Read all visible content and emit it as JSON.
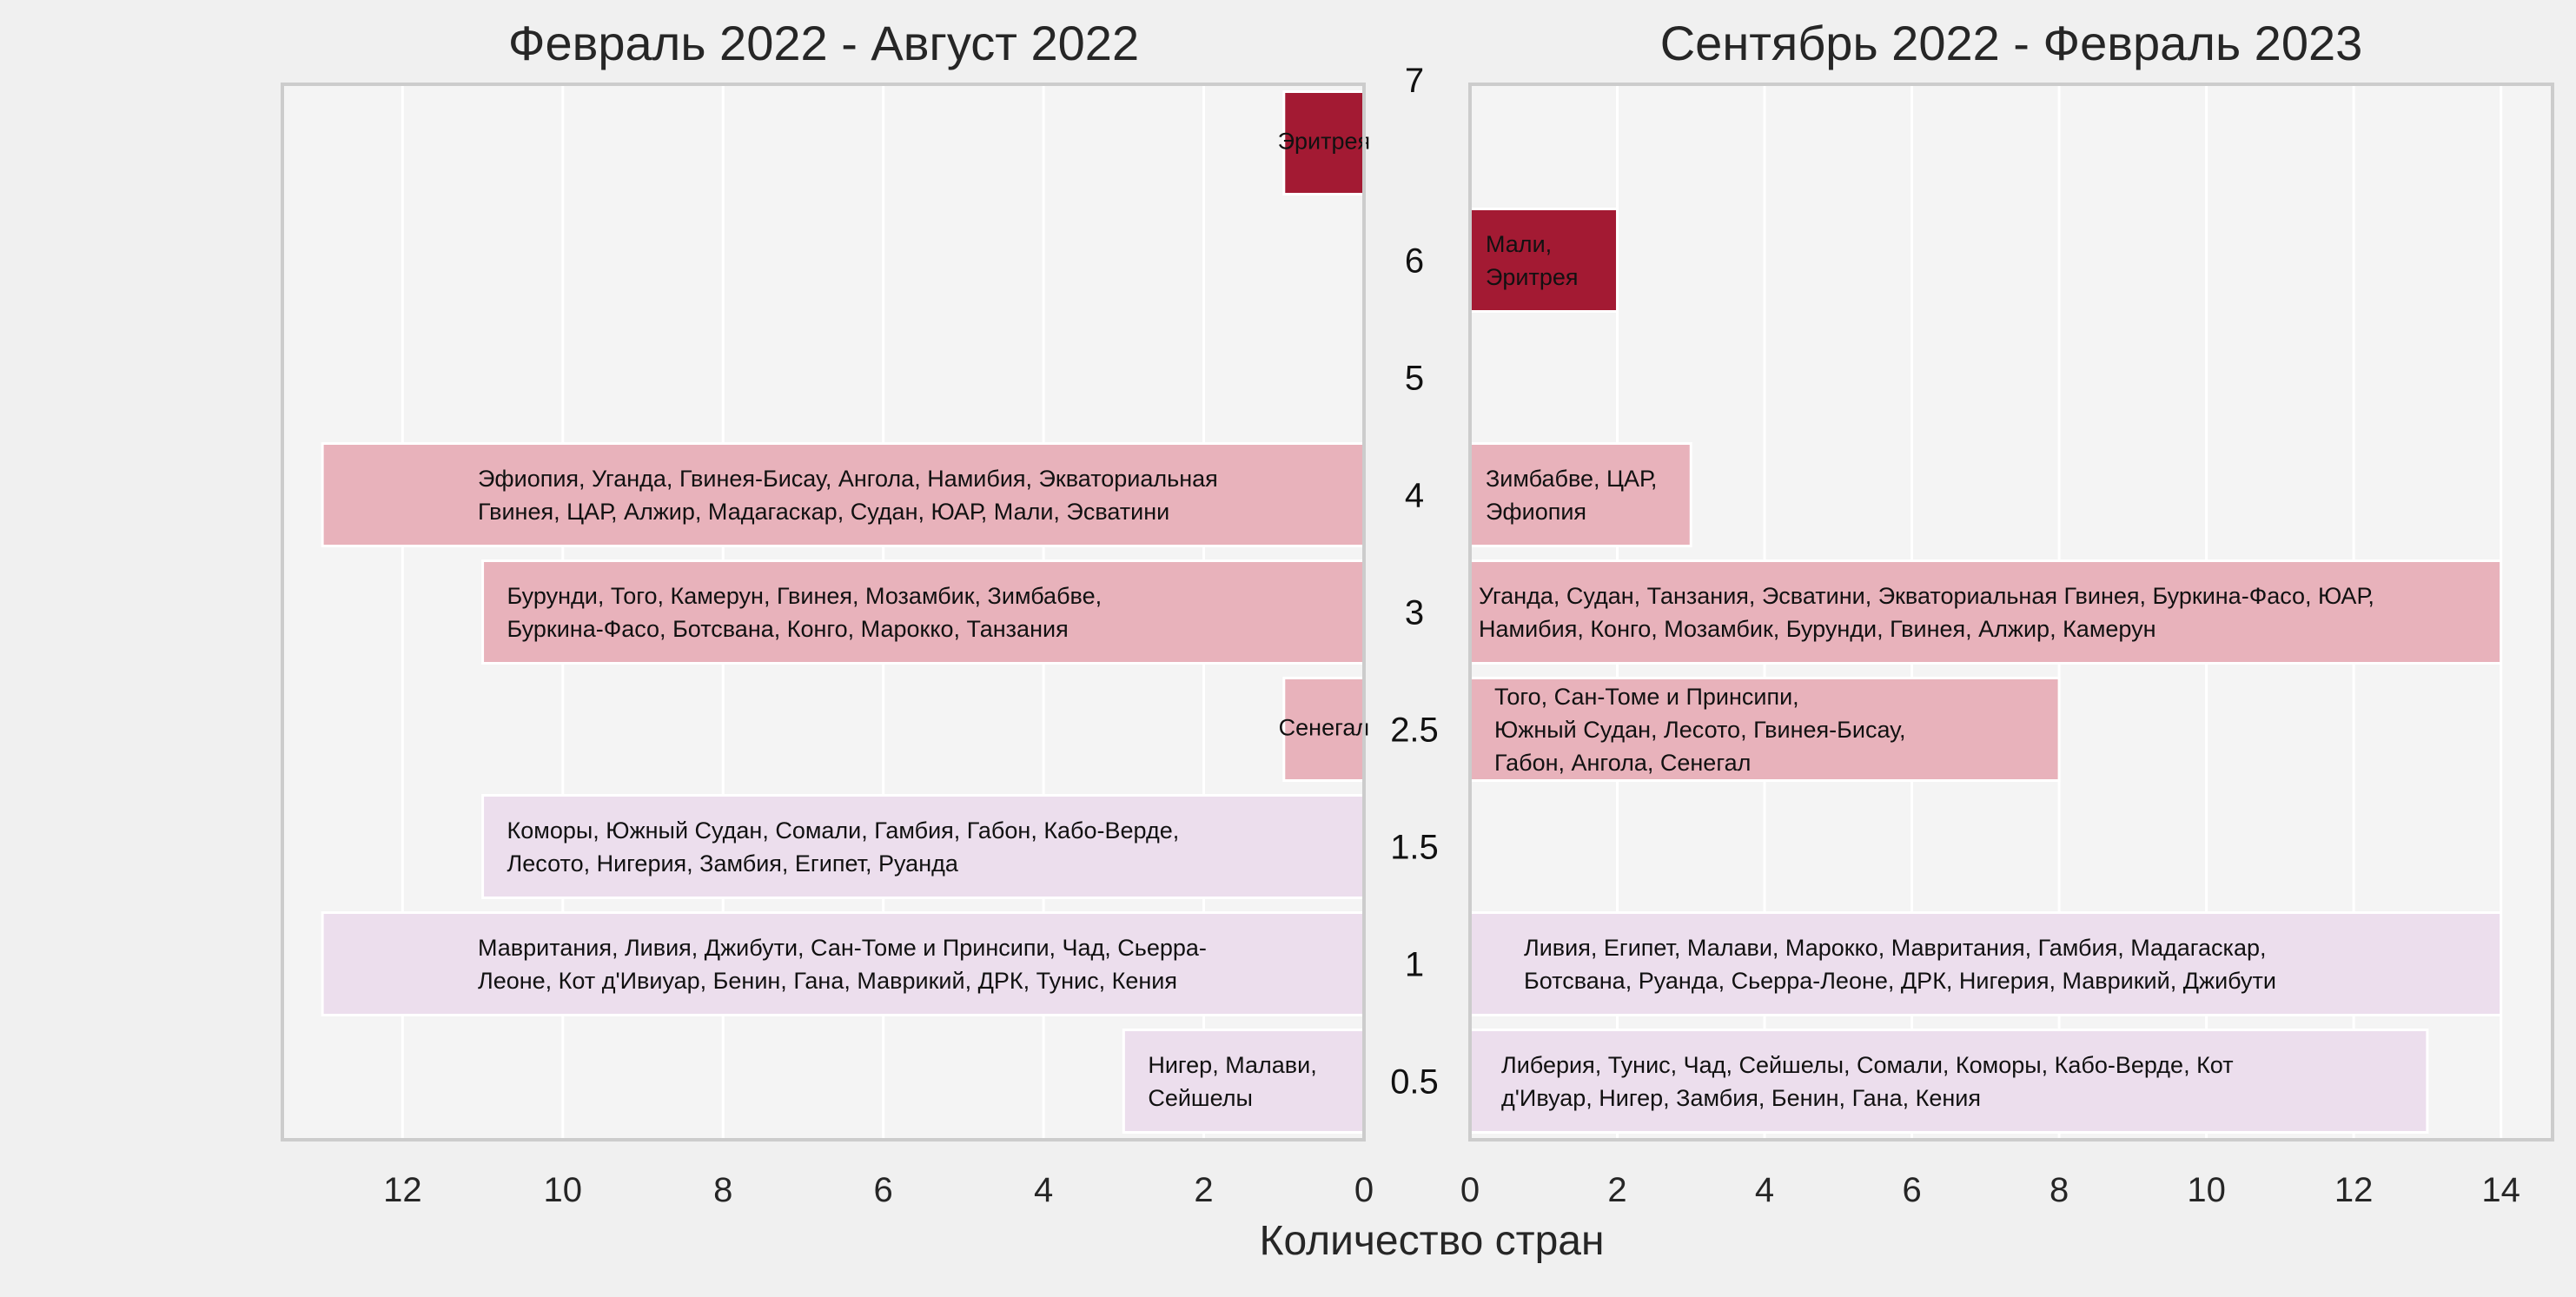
{
  "colors": {
    "background": "#f0f0f0",
    "plot_background": "#f4f4f4",
    "grid": "#ffffff",
    "frame": "#cccccc",
    "dark_red": "#a31a33",
    "light_pink": "#e8b2bb",
    "lavender": "#ecdeed"
  },
  "chart_data": {
    "type": "bar",
    "orientation": "horizontal-mirrored",
    "xlabel": "Количество стран",
    "categories": [
      "7",
      "6",
      "5",
      "4",
      "3",
      "2.5",
      "1.5",
      "1",
      "0.5"
    ],
    "series": [
      {
        "title": "Февраль 2022 - Август 2022",
        "xlim": [
          13.5,
          0
        ],
        "xticks": [
          12,
          10,
          8,
          6,
          4,
          2,
          0
        ],
        "bars": [
          {
            "category": "7",
            "value": 1,
            "color": "#a31a33",
            "lines": [
              "Эритрея"
            ]
          },
          {
            "category": "4",
            "value": 13,
            "color": "#e8b2bb",
            "lines": [
              "Эфиопия, Уганда, Гвинея-Бисау, Ангола, Намибия, Экваториальная",
              "Гвинея, ЦАР, Алжир, Мадагаскар, Судан, ЮАР, Мали, Эсватини"
            ]
          },
          {
            "category": "3",
            "value": 11,
            "color": "#e8b2bb",
            "lines": [
              "Бурунди, Того, Камерун, Гвинея, Мозамбик, Зимбабве,",
              "Буркина-Фасо, Ботсвана, Конго, Марокко, Танзания"
            ]
          },
          {
            "category": "2.5",
            "value": 1,
            "color": "#e8b2bb",
            "lines": [
              "Сенегал"
            ]
          },
          {
            "category": "1.5",
            "value": 11,
            "color": "#ecdeed",
            "lines": [
              "Коморы, Южный Судан, Сомали, Гамбия, Габон, Кабо-Верде,",
              "Лесото, Нигерия, Замбия, Египет, Руанда"
            ]
          },
          {
            "category": "1",
            "value": 13,
            "color": "#ecdeed",
            "lines": [
              "Мавритания, Ливия, Джибути, Сан-Томе и Принсипи, Чад, Сьерра-",
              "Леоне, Кот д'Ивиуар, Бенин, Гана, Маврикий, ДРК, Тунис, Кения"
            ]
          },
          {
            "category": "0.5",
            "value": 3,
            "color": "#ecdeed",
            "lines": [
              "Нигер, Малави,",
              "Сейшелы"
            ]
          }
        ]
      },
      {
        "title": "Сентябрь 2022 - Февраль 2023",
        "xlim": [
          0,
          14.7
        ],
        "xticks": [
          0,
          2,
          4,
          6,
          8,
          10,
          12,
          14
        ],
        "bars": [
          {
            "category": "6",
            "value": 2,
            "color": "#a31a33",
            "lines": [
              "Мали,",
              "Эритрея"
            ]
          },
          {
            "category": "4",
            "value": 3,
            "color": "#e8b2bb",
            "lines": [
              "Зимбабве, ЦАР,",
              "Эфиопия"
            ]
          },
          {
            "category": "3",
            "value": 14,
            "color": "#e8b2bb",
            "lines": [
              "Уганда, Судан, Танзания, Эсватини, Экваториальная Гвинея, Буркина-Фасо, ЮАР,",
              "Намибия, Конго, Мозамбик, Бурунди, Гвинея, Алжир, Камерун"
            ]
          },
          {
            "category": "2.5",
            "value": 8,
            "color": "#e8b2bb",
            "lines": [
              "Того, Сан-Томе и Принсипи,",
              "Южный Судан, Лесото, Гвинея-Бисау,",
              "Габон, Ангола, Сенегал"
            ]
          },
          {
            "category": "1",
            "value": 14,
            "color": "#ecdeed",
            "lines": [
              "Ливия, Египет, Малави, Марокко, Мавритания, Гамбия, Мадагаскар,",
              "Ботсвана, Руанда, Сьерра-Леоне, ДРК, Нигерия, Маврикий, Джибути"
            ]
          },
          {
            "category": "0.5",
            "value": 13,
            "color": "#ecdeed",
            "lines": [
              "Либерия, Тунис, Чад, Сейшелы, Сомали, Коморы, Кабо-Верде, Кот",
              "д'Ивуар, Нигер, Замбия, Бенин, Гана, Кения"
            ]
          }
        ]
      }
    ]
  }
}
